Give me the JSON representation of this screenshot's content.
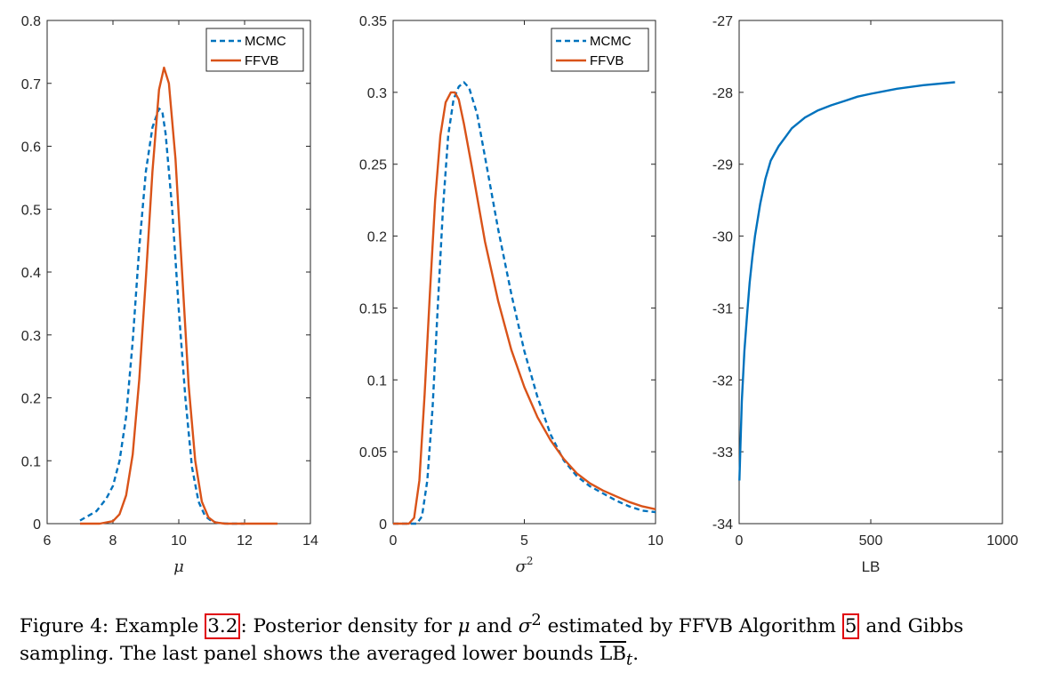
{
  "chart_data": [
    {
      "type": "line",
      "xlabel": "μ",
      "xlim": [
        6,
        14
      ],
      "ylim": [
        0,
        0.8
      ],
      "xticks": [
        6,
        8,
        10,
        12,
        14
      ],
      "yticks": [
        0,
        0.1,
        0.2,
        0.3,
        0.4,
        0.5,
        0.6,
        0.7,
        0.8
      ],
      "legend": "top-right",
      "series": [
        {
          "name": "MCMC",
          "style": "dashed",
          "color": "#0072BD",
          "x": [
            7.0,
            7.5,
            7.8,
            8.0,
            8.2,
            8.4,
            8.6,
            8.8,
            9.0,
            9.2,
            9.4,
            9.5,
            9.6,
            9.8,
            10.0,
            10.2,
            10.4,
            10.6,
            10.8,
            11.0,
            11.2,
            11.5,
            12.0
          ],
          "y": [
            0.005,
            0.02,
            0.04,
            0.06,
            0.1,
            0.17,
            0.29,
            0.44,
            0.56,
            0.63,
            0.66,
            0.655,
            0.62,
            0.5,
            0.34,
            0.2,
            0.09,
            0.035,
            0.012,
            0.004,
            0.001,
            0.0,
            0.0
          ]
        },
        {
          "name": "FFVB",
          "style": "solid",
          "color": "#D95319",
          "x": [
            7.0,
            7.6,
            8.0,
            8.2,
            8.4,
            8.6,
            8.8,
            9.0,
            9.2,
            9.4,
            9.55,
            9.7,
            9.9,
            10.1,
            10.3,
            10.5,
            10.7,
            10.9,
            11.1,
            11.4,
            12.0,
            13.0
          ],
          "y": [
            0.0,
            0.0,
            0.004,
            0.015,
            0.045,
            0.11,
            0.23,
            0.39,
            0.56,
            0.69,
            0.725,
            0.7,
            0.58,
            0.4,
            0.22,
            0.1,
            0.035,
            0.01,
            0.002,
            0.0,
            0.0,
            0.0
          ]
        }
      ]
    },
    {
      "type": "line",
      "xlabel": "σ",
      "xlabel_sup": "2",
      "xlim": [
        0,
        10
      ],
      "ylim": [
        0,
        0.35
      ],
      "xticks": [
        0,
        5,
        10
      ],
      "yticks": [
        0,
        0.05,
        0.1,
        0.15,
        0.2,
        0.25,
        0.3,
        0.35
      ],
      "legend": "top-right",
      "series": [
        {
          "name": "MCMC",
          "style": "dashed",
          "color": "#0072BD",
          "x": [
            0.0,
            0.9,
            1.1,
            1.3,
            1.5,
            1.7,
            1.9,
            2.1,
            2.3,
            2.5,
            2.7,
            2.9,
            3.2,
            3.5,
            4.0,
            4.5,
            5.0,
            5.5,
            6.0,
            6.5,
            7.0,
            7.5,
            8.0,
            8.5,
            9.0,
            9.5,
            10.0
          ],
          "y": [
            0.0,
            0.0,
            0.005,
            0.03,
            0.08,
            0.15,
            0.22,
            0.27,
            0.295,
            0.304,
            0.307,
            0.303,
            0.285,
            0.255,
            0.205,
            0.16,
            0.12,
            0.088,
            0.062,
            0.044,
            0.033,
            0.026,
            0.021,
            0.016,
            0.012,
            0.009,
            0.008
          ]
        },
        {
          "name": "FFVB",
          "style": "solid",
          "color": "#D95319",
          "x": [
            0.0,
            0.6,
            0.8,
            1.0,
            1.2,
            1.4,
            1.6,
            1.8,
            2.0,
            2.2,
            2.35,
            2.5,
            2.7,
            3.0,
            3.5,
            4.0,
            4.5,
            5.0,
            5.5,
            6.0,
            6.5,
            7.0,
            7.5,
            8.0,
            8.5,
            9.0,
            9.5,
            10.0
          ],
          "y": [
            0.0,
            0.0,
            0.004,
            0.03,
            0.09,
            0.16,
            0.225,
            0.27,
            0.293,
            0.3,
            0.3,
            0.295,
            0.278,
            0.248,
            0.196,
            0.155,
            0.121,
            0.095,
            0.074,
            0.058,
            0.045,
            0.035,
            0.028,
            0.023,
            0.019,
            0.015,
            0.012,
            0.01
          ]
        }
      ]
    },
    {
      "type": "line",
      "xlabel": "LB",
      "xlim": [
        0,
        1000
      ],
      "ylim": [
        -34,
        -27
      ],
      "xticks": [
        0,
        500,
        1000
      ],
      "yticks": [
        -34,
        -33,
        -32,
        -31,
        -30,
        -29,
        -28,
        -27
      ],
      "series": [
        {
          "style": "solid",
          "color": "#0072BD",
          "x": [
            1,
            5,
            10,
            20,
            30,
            40,
            50,
            60,
            80,
            100,
            120,
            150,
            180,
            200,
            250,
            300,
            350,
            400,
            450,
            500,
            600,
            700,
            820
          ],
          "y": [
            -33.4,
            -32.9,
            -32.3,
            -31.6,
            -31.1,
            -30.65,
            -30.3,
            -30.0,
            -29.55,
            -29.2,
            -28.95,
            -28.75,
            -28.6,
            -28.5,
            -28.35,
            -28.25,
            -28.18,
            -28.12,
            -28.06,
            -28.02,
            -27.95,
            -27.9,
            -27.86
          ]
        }
      ]
    }
  ],
  "caption": {
    "figure_label": "Figure 4:",
    "text_1": "Example",
    "ref_example": "3.2",
    "text_2": ": Posterior density for",
    "mu": "μ",
    "text_3": "and",
    "sigma": "σ",
    "sigma_sup": "2",
    "text_4": "estimated by FFVB Algorithm",
    "ref_algorithm": "5",
    "text_5": "and Gibbs sampling. The last panel shows the averaged lower bounds",
    "lb_symbol": "LB",
    "lb_sub": "t",
    "text_6": "."
  }
}
